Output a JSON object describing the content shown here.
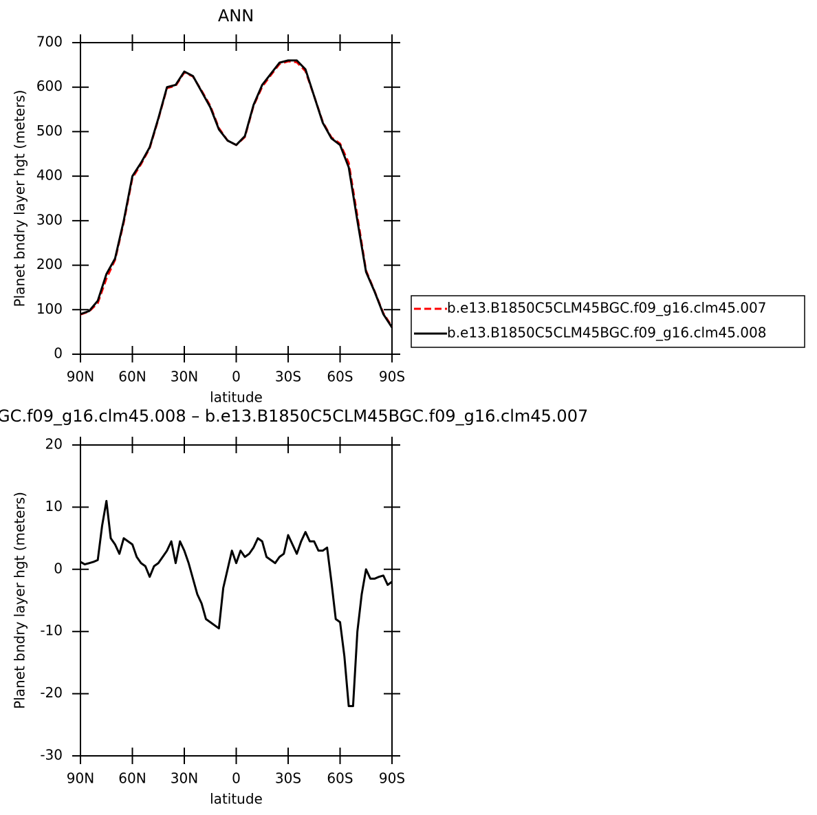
{
  "chart_data": [
    {
      "type": "line",
      "title": "ANN",
      "ylabel": "Planet bndry layer hgt (meters)",
      "xlabel": "latitude",
      "x": [
        90,
        85,
        80,
        75,
        70,
        65,
        60,
        55,
        50,
        45,
        40,
        35,
        30,
        25,
        20,
        15,
        10,
        5,
        0,
        -5,
        -10,
        -15,
        -20,
        -25,
        -30,
        -35,
        -40,
        -45,
        -50,
        -55,
        -60,
        -65,
        -70,
        -75,
        -80,
        -85,
        -90
      ],
      "series": [
        {
          "name": "b.e13.B1850C5CLM45BGC.f09_g16.clm45.007",
          "color": "#ff0000",
          "dash": true,
          "values": [
            89,
            96,
            115,
            170,
            212,
            296,
            396,
            427,
            463,
            528,
            598,
            603,
            633,
            624,
            592,
            558,
            508,
            480,
            470,
            488,
            558,
            601,
            627,
            652,
            658,
            656,
            636,
            580,
            522,
            487,
            473,
            430,
            310,
            188,
            141,
            92,
            62
          ]
        },
        {
          "name": "b.e13.B1850C5CLM45BGC.f09_g16.clm45.008",
          "color": "#000000",
          "dash": false,
          "values": [
            90,
            97,
            120,
            180,
            215,
            300,
            400,
            430,
            465,
            530,
            600,
            605,
            635,
            625,
            590,
            555,
            505,
            480,
            470,
            490,
            560,
            605,
            630,
            655,
            660,
            660,
            640,
            580,
            520,
            485,
            470,
            420,
            300,
            185,
            140,
            90,
            60
          ]
        }
      ],
      "xlim": [
        90,
        -90
      ],
      "xticks": [
        {
          "value": 90,
          "label": "90N"
        },
        {
          "value": 60,
          "label": "60N"
        },
        {
          "value": 30,
          "label": "30N"
        },
        0,
        {
          "value": -30,
          "label": "30S"
        },
        {
          "value": -60,
          "label": "60S"
        },
        {
          "value": -90,
          "label": "90S"
        }
      ],
      "ylim": [
        0,
        700
      ],
      "yticks": [
        0,
        100,
        200,
        300,
        400,
        500,
        600,
        700
      ],
      "legend": "right"
    },
    {
      "type": "line",
      "title": "GC.f09_g16.clm45.008 – b.e13.B1850C5CLM45BGC.f09_g16.clm45.007",
      "ylabel": "Planet bndry layer hgt (meters)",
      "xlabel": "latitude",
      "x": [
        90,
        87.5,
        85,
        82.5,
        80,
        77.5,
        75,
        72.5,
        70,
        67.5,
        65,
        62.5,
        60,
        57.5,
        55,
        52.5,
        50,
        47.5,
        45,
        42.5,
        40,
        37.5,
        35,
        32.5,
        30,
        27.5,
        25,
        22.5,
        20,
        17.5,
        15,
        12.5,
        10,
        7.5,
        5,
        2.5,
        0,
        -2.5,
        -5,
        -7.5,
        -10,
        -12.5,
        -15,
        -17.5,
        -20,
        -22.5,
        -25,
        -27.5,
        -30,
        -32.5,
        -35,
        -37.5,
        -40,
        -42.5,
        -45,
        -47.5,
        -50,
        -52.5,
        -55,
        -57.5,
        -60,
        -62.5,
        -65,
        -67.5,
        -70,
        -72.5,
        -75,
        -77.5,
        -80,
        -82.5,
        -85,
        -87.5,
        -90
      ],
      "series": [
        {
          "color": "#000000",
          "values": [
            1.2,
            0.8,
            1,
            1.2,
            1.5,
            7,
            11,
            5,
            4,
            2.5,
            5,
            4.5,
            4,
            2,
            1,
            0.5,
            -1.2,
            0.5,
            1,
            2,
            3,
            4.5,
            1,
            4.5,
            3,
            1,
            -1.5,
            -4,
            -5.5,
            -8,
            -8.5,
            -9,
            -9.5,
            -3,
            0,
            3,
            1,
            3,
            2,
            2.5,
            3.5,
            5,
            4.5,
            2,
            1.5,
            1,
            2,
            2.5,
            5.5,
            4,
            2.5,
            4.5,
            6,
            4.5,
            4.5,
            3,
            3,
            3.5,
            -2,
            -8,
            -8.5,
            -14,
            -22,
            -22,
            -10,
            -4,
            0,
            -1.5,
            -1.5,
            -1.2,
            -1,
            -2.5,
            -2
          ]
        }
      ],
      "xlim": [
        90,
        -90
      ],
      "xticks": [
        {
          "value": 90,
          "label": "90N"
        },
        {
          "value": 60,
          "label": "60N"
        },
        {
          "value": 30,
          "label": "30N"
        },
        0,
        {
          "value": -30,
          "label": "30S"
        },
        {
          "value": -60,
          "label": "60S"
        },
        {
          "value": -90,
          "label": "90S"
        }
      ],
      "ylim": [
        -30,
        20
      ],
      "yticks": [
        -30,
        -20,
        -10,
        0,
        10,
        20
      ]
    }
  ]
}
